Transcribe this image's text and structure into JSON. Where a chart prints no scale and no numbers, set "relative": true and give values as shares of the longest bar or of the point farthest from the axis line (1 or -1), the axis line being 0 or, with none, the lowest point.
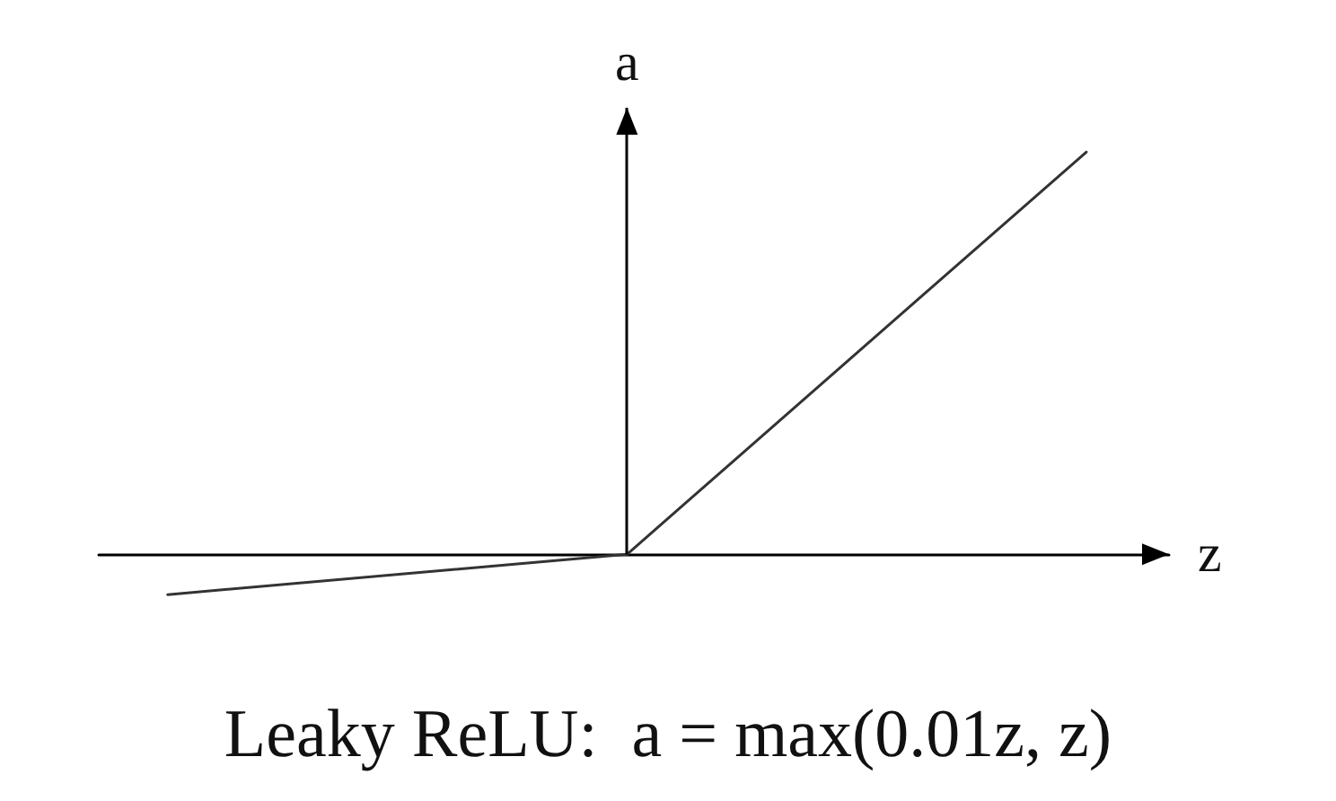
{
  "chart_data": {
    "type": "line",
    "relative": true,
    "xlabel": "z",
    "ylabel": "a",
    "categories": [
      null,
      null,
      null
    ],
    "values": [
      -0.1,
      0,
      1
    ],
    "color": "#333333",
    "annotations": [
      "Leaky ReLU:  a = max(0.01z, z)"
    ]
  }
}
